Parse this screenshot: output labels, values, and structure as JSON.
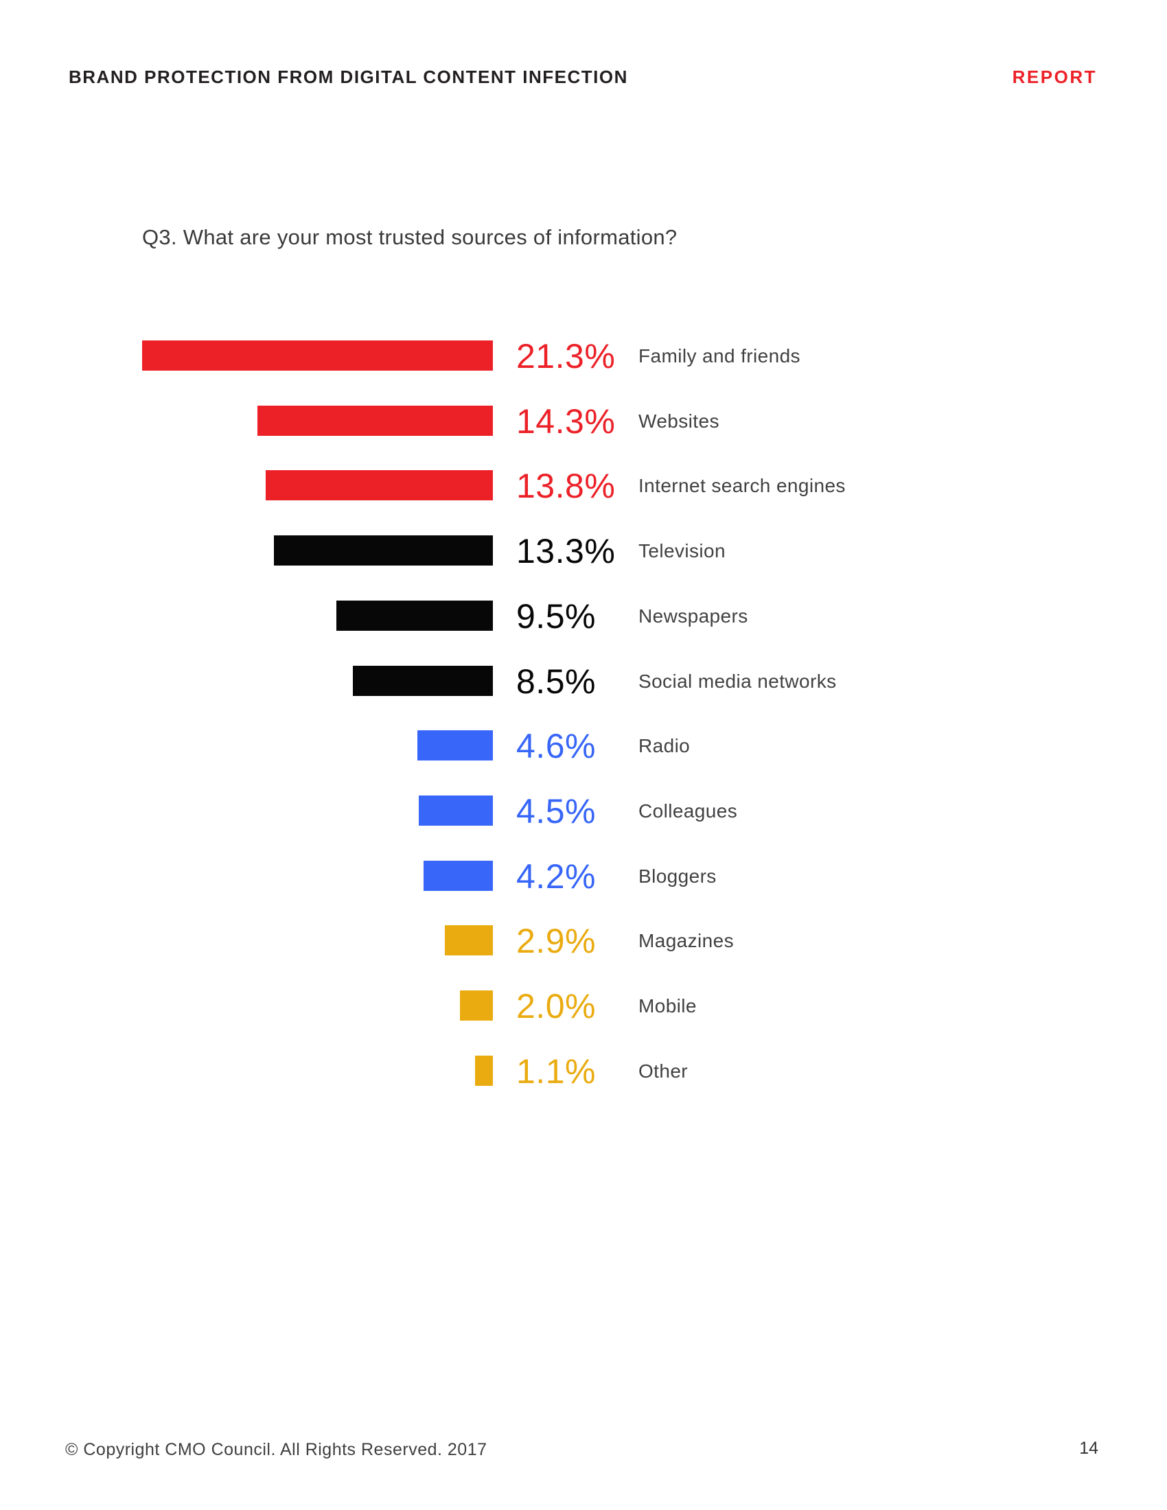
{
  "header": {
    "title": "BRAND PROTECTION FROM DIGITAL CONTENT INFECTION",
    "badge": "REPORT"
  },
  "colors": {
    "red": "#EC2128",
    "black": "#070707",
    "blue": "#3766F8",
    "gold": "#EAAB10",
    "label_text": "#414042",
    "header_text": "#231F20"
  },
  "chart_data": {
    "type": "bar",
    "orientation": "horizontal",
    "title": "Q3. What are your most trusted sources of information?",
    "xlabel": "",
    "ylabel": "",
    "value_unit": "%",
    "xlim": [
      0,
      21.3
    ],
    "grid": false,
    "legend": "none",
    "bars_right_aligned": true,
    "categories": [
      "Family and friends",
      "Websites",
      "Internet search engines",
      "Television",
      "Newspapers",
      "Social media networks",
      "Radio",
      "Colleagues",
      "Bloggers",
      "Magazines",
      "Mobile",
      "Other"
    ],
    "values": [
      21.3,
      14.3,
      13.8,
      13.3,
      9.5,
      8.5,
      4.6,
      4.5,
      4.2,
      2.9,
      2.0,
      1.1
    ],
    "rows": [
      {
        "label": "Family and friends",
        "value": 21.3,
        "display": "21.3%",
        "color_key": "red"
      },
      {
        "label": "Websites",
        "value": 14.3,
        "display": "14.3%",
        "color_key": "red"
      },
      {
        "label": "Internet search engines",
        "value": 13.8,
        "display": "13.8%",
        "color_key": "red"
      },
      {
        "label": "Television",
        "value": 13.3,
        "display": "13.3%",
        "color_key": "black"
      },
      {
        "label": "Newspapers",
        "value": 9.5,
        "display": "9.5%",
        "color_key": "black"
      },
      {
        "label": "Social media networks",
        "value": 8.5,
        "display": "8.5%",
        "color_key": "black"
      },
      {
        "label": "Radio",
        "value": 4.6,
        "display": "4.6%",
        "color_key": "blue"
      },
      {
        "label": "Colleagues",
        "value": 4.5,
        "display": "4.5%",
        "color_key": "blue"
      },
      {
        "label": "Bloggers",
        "value": 4.2,
        "display": "4.2%",
        "color_key": "blue"
      },
      {
        "label": "Magazines",
        "value": 2.9,
        "display": "2.9%",
        "color_key": "gold"
      },
      {
        "label": "Mobile",
        "value": 2.0,
        "display": "2.0%",
        "color_key": "gold"
      },
      {
        "label": "Other",
        "value": 1.1,
        "display": "1.1%",
        "color_key": "gold"
      }
    ]
  },
  "footer": {
    "copyright": "© Copyright CMO Council. All Rights Reserved. 2017",
    "page_number": "14"
  }
}
